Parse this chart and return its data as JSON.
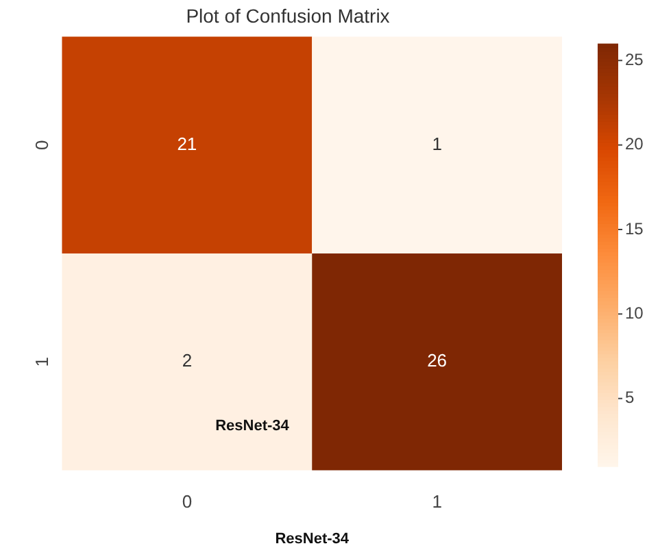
{
  "chart_data": {
    "type": "heatmap",
    "title": "Plot of Confusion Matrix",
    "xlabel": "ResNet-34",
    "categories": [
      "0",
      "1"
    ],
    "y_categories": [
      "0",
      "1"
    ],
    "cells": [
      [
        21,
        1
      ],
      [
        2,
        26
      ]
    ],
    "data_labels": true,
    "clim": [
      1,
      26
    ],
    "cticks": [
      5,
      10,
      15,
      20,
      25
    ],
    "annotations": [
      "ResNet-34"
    ]
  }
}
